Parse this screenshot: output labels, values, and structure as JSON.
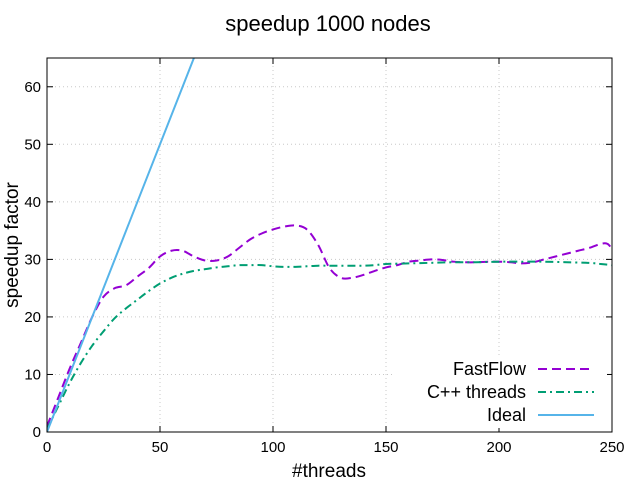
{
  "chart_data": {
    "type": "line",
    "title": "speedup 1000 nodes",
    "xlabel": "#threads",
    "ylabel": "speedup factor",
    "xlim": [
      0,
      250
    ],
    "ylim": [
      0,
      65
    ],
    "xticks": [
      "0",
      "50",
      "100",
      "150",
      "200",
      "250"
    ],
    "yticks": [
      "0",
      "10",
      "20",
      "30",
      "40",
      "50",
      "60"
    ],
    "grid": true,
    "legend_position": "bottom-right",
    "series": [
      {
        "name": "FastFlow",
        "color": "#9400d3",
        "dash": "dashed",
        "x": [
          0,
          5,
          10,
          15,
          20,
          25,
          30,
          35,
          40,
          45,
          50,
          55,
          60,
          65,
          70,
          75,
          80,
          85,
          90,
          95,
          100,
          105,
          110,
          115,
          120,
          125,
          130,
          135,
          140,
          145,
          150,
          155,
          160,
          165,
          170,
          175,
          180,
          185,
          190,
          195,
          200,
          205,
          210,
          215,
          220,
          225,
          230,
          235,
          240,
          245,
          248,
          250
        ],
        "y": [
          1,
          6,
          11,
          15.5,
          20,
          23.5,
          25,
          25.5,
          27,
          28.5,
          30.5,
          31.5,
          31.5,
          30.5,
          29.8,
          29.8,
          30.5,
          32,
          33.5,
          34.5,
          35.2,
          35.7,
          35.9,
          35.2,
          32.5,
          28.5,
          26.8,
          26.8,
          27.3,
          28,
          28.6,
          29,
          29.6,
          29.8,
          30,
          29.9,
          29.6,
          29.5,
          29.5,
          29.6,
          29.6,
          29.5,
          29.3,
          29.5,
          30,
          30.5,
          31,
          31.5,
          32,
          32.7,
          32.7,
          31.8
        ]
      },
      {
        "name": "C++ threads",
        "color": "#009e73",
        "dash": "dash-dot",
        "x": [
          0,
          5,
          10,
          15,
          20,
          25,
          30,
          35,
          40,
          45,
          50,
          55,
          60,
          65,
          70,
          75,
          80,
          85,
          90,
          95,
          100,
          105,
          110,
          115,
          120,
          125,
          130,
          135,
          140,
          145,
          150,
          160,
          170,
          180,
          190,
          200,
          210,
          220,
          230,
          240,
          245,
          250
        ],
        "y": [
          0.5,
          4.5,
          8.5,
          12,
          15,
          17.5,
          19.8,
          21.5,
          23,
          24.5,
          25.8,
          26.8,
          27.5,
          28,
          28.3,
          28.6,
          28.8,
          29,
          29,
          29,
          28.8,
          28.7,
          28.7,
          28.8,
          28.9,
          28.9,
          28.9,
          28.9,
          28.9,
          29,
          29.2,
          29.3,
          29.4,
          29.5,
          29.5,
          29.6,
          29.6,
          29.6,
          29.5,
          29.4,
          29.2,
          29.0
        ]
      },
      {
        "name": "Ideal",
        "color": "#56b4e9",
        "dash": "solid",
        "x": [
          0,
          65
        ],
        "y": [
          0,
          65
        ]
      }
    ]
  }
}
